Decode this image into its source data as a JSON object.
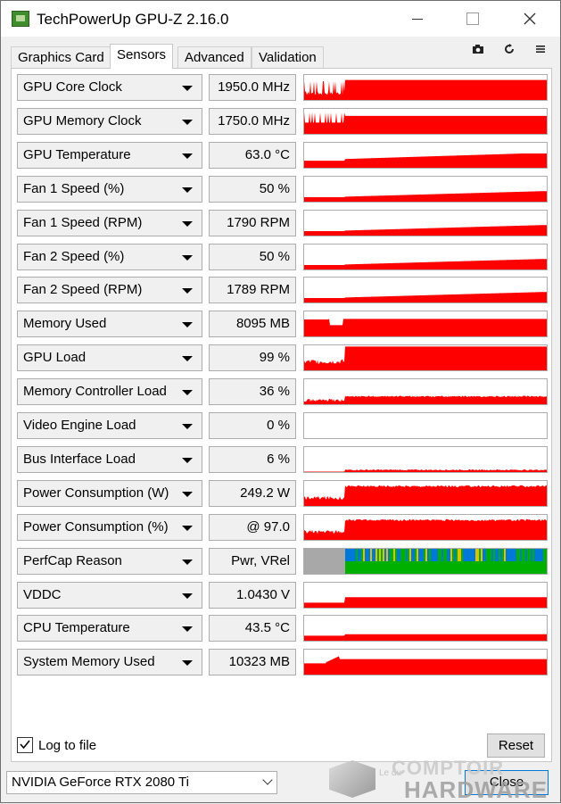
{
  "window": {
    "title": "TechPowerUp GPU-Z 2.16.0"
  },
  "tabs": [
    {
      "label": "Graphics Card",
      "active": false
    },
    {
      "label": "Sensors",
      "active": true
    },
    {
      "label": "Advanced",
      "active": false
    },
    {
      "label": "Validation",
      "active": false
    }
  ],
  "toolbar": {
    "camera_icon": "camera-icon",
    "refresh_icon": "refresh-icon",
    "menu_icon": "menu-icon"
  },
  "colors": {
    "graph_line": "#ff0000",
    "perfcap_idle": "#a8a8a8",
    "perfcap_pwr": "#00b000",
    "perfcap_vrel": "#0078d7",
    "perfcap_other": "#e0c000"
  },
  "sensors": [
    {
      "name": "GPU Core Clock",
      "value": "1950.0 MHz",
      "graph": "core"
    },
    {
      "name": "GPU Memory Clock",
      "value": "1750.0 MHz",
      "graph": "mem"
    },
    {
      "name": "GPU Temperature",
      "value": "63.0 °C",
      "graph": "temp"
    },
    {
      "name": "Fan 1 Speed (%)",
      "value": "50 %",
      "graph": "fan"
    },
    {
      "name": "Fan 1 Speed (RPM)",
      "value": "1790 RPM",
      "graph": "fan"
    },
    {
      "name": "Fan 2 Speed (%)",
      "value": "50 %",
      "graph": "fan"
    },
    {
      "name": "Fan 2 Speed (RPM)",
      "value": "1789 RPM",
      "graph": "fan"
    },
    {
      "name": "Memory Used",
      "value": "8095 MB",
      "graph": "memused"
    },
    {
      "name": "GPU Load",
      "value": "99 %",
      "graph": "load"
    },
    {
      "name": "Memory Controller Load",
      "value": "36 %",
      "graph": "mcload"
    },
    {
      "name": "Video Engine Load",
      "value": "0 %",
      "graph": "none"
    },
    {
      "name": "Bus Interface Load",
      "value": "6 %",
      "graph": "bus"
    },
    {
      "name": "Power Consumption (W)",
      "value": "249.2 W",
      "graph": "power"
    },
    {
      "name": "Power Consumption (%)",
      "value": "@ 97.0",
      "graph": "power"
    },
    {
      "name": "PerfCap Reason",
      "value": "Pwr, VRel",
      "graph": "perfcap"
    },
    {
      "name": "VDDC",
      "value": "1.0430 V",
      "graph": "vddc"
    },
    {
      "name": "CPU Temperature",
      "value": "43.5 °C",
      "graph": "cputemp"
    },
    {
      "name": "System Memory Used",
      "value": "10323 MB",
      "graph": "sysmem"
    }
  ],
  "footer": {
    "log_to_file_label": "Log to file",
    "log_to_file_checked": true,
    "reset_label": "Reset",
    "gpu_select_value": "NVIDIA GeForce RTX 2080 Ti",
    "close_label": "Close"
  },
  "watermark": {
    "line_top": "COMPTOIR",
    "line_small": "Le du",
    "line_bottom": "HARDWARE"
  }
}
